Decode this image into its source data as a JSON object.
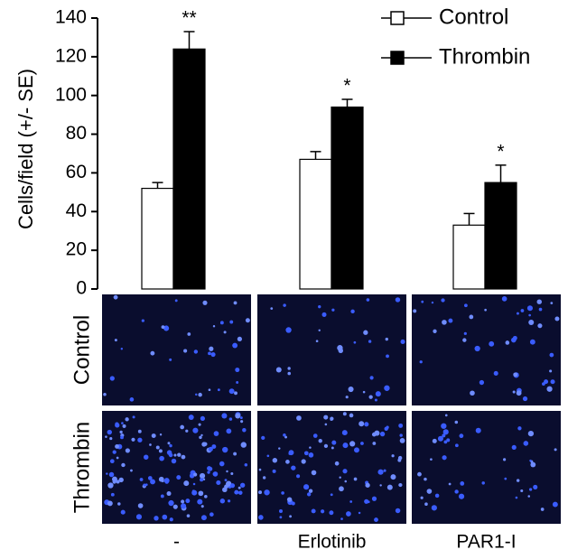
{
  "chart_data": {
    "type": "bar",
    "ylabel": "Cells/field (+/- SE)",
    "categories": [
      "-",
      "Erlotinib",
      "PAR1-I"
    ],
    "series": [
      {
        "name": "Control",
        "color": "#ffffff",
        "values": [
          52,
          67,
          33
        ],
        "errors": [
          3,
          4,
          6
        ]
      },
      {
        "name": "Thrombin",
        "color": "#000000",
        "values": [
          124,
          94,
          55
        ],
        "errors": [
          9,
          4,
          9
        ]
      }
    ],
    "annotations": [
      "**",
      "*",
      "*"
    ],
    "image_rows": [
      "Control",
      "Thrombin"
    ],
    "ylim": [
      0,
      140
    ],
    "yticks": [
      0,
      20,
      40,
      60,
      80,
      100,
      120,
      140
    ]
  }
}
